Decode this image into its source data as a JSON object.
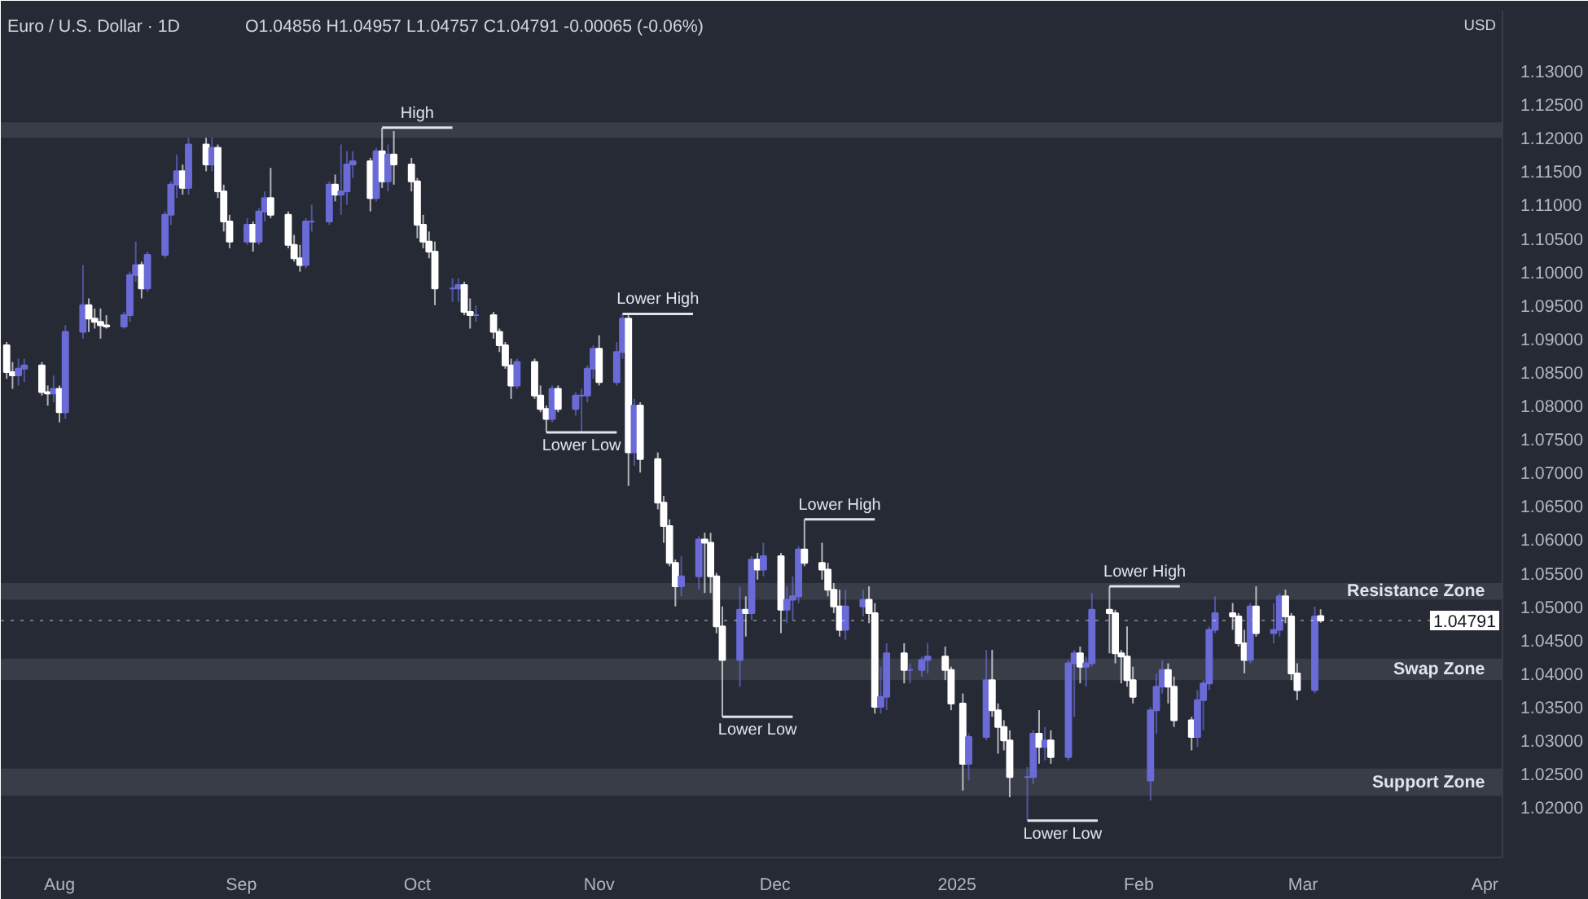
{
  "chart_data": {
    "type": "candlestick",
    "title": "Euro / U.S. Dollar · 1D",
    "subtitle": "O1.04856 H1.04957 L1.04757 C1.04791 -0.00065 (-0.06%)",
    "x": [
      "2024-07-23",
      "2024-07-24",
      "2024-07-25",
      "2024-07-26",
      "2024-07-29",
      "2024-07-30",
      "2024-07-31",
      "2024-08-01",
      "2024-08-02",
      "2024-08-05",
      "2024-08-06",
      "2024-08-07",
      "2024-08-08",
      "2024-08-09",
      "2024-08-12",
      "2024-08-13",
      "2024-08-14",
      "2024-08-15",
      "2024-08-16",
      "2024-08-19",
      "2024-08-20",
      "2024-08-21",
      "2024-08-22",
      "2024-08-23",
      "2024-08-26",
      "2024-08-27",
      "2024-08-28",
      "2024-08-29",
      "2024-08-30",
      "2024-09-02",
      "2024-09-03",
      "2024-09-04",
      "2024-09-05",
      "2024-09-06",
      "2024-09-09",
      "2024-09-10",
      "2024-09-11",
      "2024-09-12",
      "2024-09-13",
      "2024-09-16",
      "2024-09-17",
      "2024-09-18",
      "2024-09-19",
      "2024-09-20",
      "2024-09-23",
      "2024-09-24",
      "2024-09-25",
      "2024-09-26",
      "2024-09-27",
      "2024-09-30",
      "2024-10-01",
      "2024-10-02",
      "2024-10-03",
      "2024-10-04",
      "2024-10-07",
      "2024-10-08",
      "2024-10-09",
      "2024-10-10",
      "2024-10-11",
      "2024-10-14",
      "2024-10-15",
      "2024-10-16",
      "2024-10-17",
      "2024-10-18",
      "2024-10-21",
      "2024-10-22",
      "2024-10-23",
      "2024-10-24",
      "2024-10-25",
      "2024-10-28",
      "2024-10-29",
      "2024-10-30",
      "2024-10-31",
      "2024-11-01",
      "2024-11-04",
      "2024-11-05",
      "2024-11-06",
      "2024-11-07",
      "2024-11-08",
      "2024-11-11",
      "2024-11-12",
      "2024-11-13",
      "2024-11-14",
      "2024-11-15",
      "2024-11-18",
      "2024-11-19",
      "2024-11-20",
      "2024-11-21",
      "2024-11-22",
      "2024-11-25",
      "2024-11-26",
      "2024-11-27",
      "2024-11-28",
      "2024-11-29",
      "2024-12-02",
      "2024-12-03",
      "2024-12-04",
      "2024-12-05",
      "2024-12-06",
      "2024-12-09",
      "2024-12-10",
      "2024-12-11",
      "2024-12-12",
      "2024-12-13",
      "2024-12-16",
      "2024-12-17",
      "2024-12-18",
      "2024-12-19",
      "2024-12-20",
      "2024-12-23",
      "2024-12-24",
      "2024-12-26",
      "2024-12-27",
      "2024-12-30",
      "2024-12-31",
      "2025-01-02",
      "2025-01-03",
      "2025-01-06",
      "2025-01-07",
      "2025-01-08",
      "2025-01-09",
      "2025-01-10",
      "2025-01-13",
      "2025-01-14",
      "2025-01-15",
      "2025-01-16",
      "2025-01-17",
      "2025-01-20",
      "2025-01-21",
      "2025-01-22",
      "2025-01-23",
      "2025-01-24",
      "2025-01-27",
      "2025-01-28",
      "2025-01-29",
      "2025-01-30",
      "2025-01-31",
      "2025-02-03",
      "2025-02-04",
      "2025-02-05",
      "2025-02-06",
      "2025-02-07",
      "2025-02-10",
      "2025-02-11",
      "2025-02-12",
      "2025-02-13",
      "2025-02-14",
      "2025-02-17",
      "2025-02-18",
      "2025-02-19",
      "2025-02-20",
      "2025-02-21",
      "2025-02-24",
      "2025-02-25",
      "2025-02-26",
      "2025-02-27",
      "2025-02-28",
      "2025-03-03",
      "2025-03-04"
    ],
    "ohlc": [
      [
        1.089,
        1.0895,
        1.084,
        1.085
      ],
      [
        1.085,
        1.0865,
        1.0825,
        1.0845
      ],
      [
        1.0845,
        1.087,
        1.083,
        1.0855
      ],
      [
        1.0855,
        1.087,
        1.0835,
        1.086
      ],
      [
        1.086,
        1.0865,
        1.0815,
        1.082
      ],
      [
        1.082,
        1.083,
        1.08,
        1.0818
      ],
      [
        1.0818,
        1.0845,
        1.0805,
        1.0825
      ],
      [
        1.0825,
        1.083,
        1.0775,
        1.079
      ],
      [
        1.079,
        1.092,
        1.078,
        1.091
      ],
      [
        1.091,
        1.101,
        1.09,
        1.095
      ],
      [
        1.095,
        1.096,
        1.091,
        1.093
      ],
      [
        1.093,
        1.0945,
        1.0915,
        1.0925
      ],
      [
        1.0925,
        1.0945,
        1.09,
        1.092
      ],
      [
        1.092,
        1.0935,
        1.0915,
        1.0918
      ],
      [
        1.0918,
        1.094,
        1.0915,
        1.0935
      ],
      [
        1.0935,
        1.1,
        1.0925,
        1.0995
      ],
      [
        1.0995,
        1.1045,
        1.0985,
        1.101
      ],
      [
        1.101,
        1.1015,
        1.096,
        1.0975
      ],
      [
        1.0975,
        1.103,
        1.097,
        1.1025
      ],
      [
        1.1025,
        1.109,
        1.102,
        1.1085
      ],
      [
        1.1085,
        1.1135,
        1.107,
        1.113
      ],
      [
        1.113,
        1.1175,
        1.111,
        1.115
      ],
      [
        1.115,
        1.116,
        1.1115,
        1.1125
      ],
      [
        1.1125,
        1.12,
        1.1115,
        1.119
      ],
      [
        1.119,
        1.12,
        1.115,
        1.116
      ],
      [
        1.116,
        1.12,
        1.115,
        1.1185
      ],
      [
        1.1185,
        1.119,
        1.111,
        1.112
      ],
      [
        1.112,
        1.113,
        1.106,
        1.1075
      ],
      [
        1.1075,
        1.1085,
        1.1035,
        1.1045
      ],
      [
        1.1045,
        1.108,
        1.104,
        1.107
      ],
      [
        1.107,
        1.1075,
        1.103,
        1.1045
      ],
      [
        1.1045,
        1.1095,
        1.104,
        1.109
      ],
      [
        1.109,
        1.112,
        1.1075,
        1.111
      ],
      [
        1.111,
        1.1155,
        1.108,
        1.1085
      ],
      [
        1.1085,
        1.109,
        1.1035,
        1.104
      ],
      [
        1.104,
        1.1055,
        1.1015,
        1.102
      ],
      [
        1.102,
        1.104,
        1.1,
        1.101
      ],
      [
        1.101,
        1.108,
        1.1005,
        1.1075
      ],
      [
        1.1075,
        1.11,
        1.106,
        1.1075
      ],
      [
        1.1075,
        1.1135,
        1.107,
        1.113
      ],
      [
        1.113,
        1.1145,
        1.1105,
        1.1115
      ],
      [
        1.1115,
        1.119,
        1.1085,
        1.112
      ],
      [
        1.112,
        1.118,
        1.11,
        1.116
      ],
      [
        1.116,
        1.118,
        1.114,
        1.1165
      ],
      [
        1.1165,
        1.117,
        1.109,
        1.111
      ],
      [
        1.111,
        1.1185,
        1.1105,
        1.118
      ],
      [
        1.118,
        1.1215,
        1.1125,
        1.1135
      ],
      [
        1.1135,
        1.119,
        1.112,
        1.1175
      ],
      [
        1.1175,
        1.121,
        1.113,
        1.116
      ],
      [
        1.116,
        1.117,
        1.112,
        1.1135
      ],
      [
        1.1135,
        1.114,
        1.105,
        1.107
      ],
      [
        1.107,
        1.1085,
        1.1035,
        1.1045
      ],
      [
        1.1045,
        1.106,
        1.102,
        1.103
      ],
      [
        1.103,
        1.1045,
        1.095,
        1.0975
      ],
      [
        1.0975,
        1.099,
        1.0955,
        1.0975
      ],
      [
        1.0975,
        1.099,
        1.0955,
        1.098
      ],
      [
        1.098,
        1.0985,
        1.0935,
        1.094
      ],
      [
        1.094,
        1.096,
        1.0915,
        1.0935
      ],
      [
        1.0935,
        1.095,
        1.0925,
        1.0935
      ],
      [
        1.0935,
        1.094,
        1.09,
        1.091
      ],
      [
        1.091,
        1.0915,
        1.088,
        1.089
      ],
      [
        1.089,
        1.0895,
        1.0855,
        1.086
      ],
      [
        1.086,
        1.087,
        1.081,
        1.083
      ],
      [
        1.083,
        1.087,
        1.0825,
        1.0865
      ],
      [
        1.0865,
        1.087,
        1.081,
        1.0815
      ],
      [
        1.0815,
        1.083,
        1.079,
        1.0795
      ],
      [
        1.0795,
        1.08,
        1.076,
        1.078
      ],
      [
        1.078,
        1.083,
        1.0775,
        1.0825
      ],
      [
        1.0825,
        1.083,
        1.079,
        1.0795
      ],
      [
        1.0795,
        1.082,
        1.0785,
        1.0815
      ],
      [
        1.0815,
        1.0825,
        1.076,
        1.0815
      ],
      [
        1.0815,
        1.086,
        1.0805,
        1.0855
      ],
      [
        1.0855,
        1.089,
        1.084,
        1.0885
      ],
      [
        1.0885,
        1.0905,
        1.083,
        1.0835
      ],
      [
        1.0835,
        1.0895,
        1.083,
        1.088
      ],
      [
        1.088,
        1.0937,
        1.087,
        1.093
      ],
      [
        1.093,
        1.0935,
        1.068,
        1.073
      ],
      [
        1.073,
        1.081,
        1.071,
        1.08
      ],
      [
        1.08,
        1.0805,
        1.07,
        1.072
      ],
      [
        1.072,
        1.073,
        1.0645,
        1.0655
      ],
      [
        1.0655,
        1.0665,
        1.0595,
        1.062
      ],
      [
        1.062,
        1.063,
        1.056,
        1.0565
      ],
      [
        1.0565,
        1.057,
        1.05,
        1.053
      ],
      [
        1.053,
        1.0575,
        1.0515,
        1.0545
      ],
      [
        1.0545,
        1.0605,
        1.0525,
        1.06
      ],
      [
        1.06,
        1.061,
        1.052,
        1.0595
      ],
      [
        1.0595,
        1.061,
        1.052,
        1.0545
      ],
      [
        1.0545,
        1.055,
        1.046,
        1.047
      ],
      [
        1.047,
        1.05,
        1.0335,
        1.042
      ],
      [
        1.042,
        1.053,
        1.038,
        1.0495
      ],
      [
        1.0495,
        1.0515,
        1.0455,
        1.049
      ],
      [
        1.049,
        1.0575,
        1.048,
        1.057
      ],
      [
        1.057,
        1.058,
        1.054,
        1.0555
      ],
      [
        1.0555,
        1.0595,
        1.0545,
        1.0575
      ],
      [
        1.0575,
        1.058,
        1.046,
        1.0495
      ],
      [
        1.0495,
        1.053,
        1.0475,
        1.051
      ],
      [
        1.051,
        1.0545,
        1.048,
        1.0515
      ],
      [
        1.0515,
        1.059,
        1.0505,
        1.0585
      ],
      [
        1.0585,
        1.063,
        1.056,
        1.0565
      ],
      [
        1.0565,
        1.0595,
        1.054,
        1.0555
      ],
      [
        1.0555,
        1.0565,
        1.0515,
        1.0525
      ],
      [
        1.0525,
        1.0535,
        1.049,
        1.05
      ],
      [
        1.05,
        1.0525,
        1.0455,
        1.0465
      ],
      [
        1.0465,
        1.0525,
        1.045,
        1.05
      ],
      [
        1.05,
        1.0525,
        1.0485,
        1.051
      ],
      [
        1.051,
        1.053,
        1.0475,
        1.049
      ],
      [
        1.049,
        1.0505,
        1.034,
        1.035
      ],
      [
        1.035,
        1.041,
        1.034,
        1.0365
      ],
      [
        1.0365,
        1.0445,
        1.0345,
        1.043
      ],
      [
        1.043,
        1.0445,
        1.0385,
        1.0405
      ],
      [
        1.0405,
        1.0415,
        1.0385,
        1.0405
      ],
      [
        1.0405,
        1.0425,
        1.0395,
        1.042
      ],
      [
        1.042,
        1.0445,
        1.04,
        1.0425
      ],
      [
        1.0425,
        1.044,
        1.039,
        1.0405
      ],
      [
        1.0405,
        1.041,
        1.0345,
        1.0355
      ],
      [
        1.0355,
        1.037,
        1.0225,
        1.0265
      ],
      [
        1.0265,
        1.031,
        1.024,
        1.0305
      ],
      [
        1.0305,
        1.0435,
        1.03,
        1.039
      ],
      [
        1.039,
        1.0435,
        1.0335,
        1.0345
      ],
      [
        1.0345,
        1.0355,
        1.028,
        1.032
      ],
      [
        1.032,
        1.033,
        1.0285,
        1.03
      ],
      [
        1.03,
        1.0315,
        1.0215,
        1.0245
      ],
      [
        1.0245,
        1.026,
        1.018,
        1.0245
      ],
      [
        1.0245,
        1.0315,
        1.0235,
        1.031
      ],
      [
        1.031,
        1.0345,
        1.0265,
        1.029
      ],
      [
        1.029,
        1.032,
        1.027,
        1.03
      ],
      [
        1.03,
        1.0315,
        1.0265,
        1.0275
      ],
      [
        1.0275,
        1.042,
        1.027,
        1.0415
      ],
      [
        1.0415,
        1.0435,
        1.0335,
        1.043
      ],
      [
        1.043,
        1.044,
        1.0385,
        1.041
      ],
      [
        1.041,
        1.0425,
        1.038,
        1.0415
      ],
      [
        1.0415,
        1.052,
        1.041,
        1.0495
      ],
      [
        1.0495,
        1.053,
        1.043,
        1.049
      ],
      [
        1.049,
        1.0495,
        1.0415,
        1.043
      ],
      [
        1.043,
        1.0435,
        1.0385,
        1.0425
      ],
      [
        1.0425,
        1.047,
        1.038,
        1.039
      ],
      [
        1.039,
        1.041,
        1.0355,
        1.0365
      ],
      [
        1.024,
        1.035,
        1.021,
        1.0345
      ],
      [
        1.0345,
        1.04,
        1.031,
        1.038
      ],
      [
        1.038,
        1.042,
        1.037,
        1.0405
      ],
      [
        1.0405,
        1.0415,
        1.0355,
        1.038
      ],
      [
        1.038,
        1.0395,
        1.032,
        1.033
      ],
      [
        1.033,
        1.0335,
        1.0285,
        1.0305
      ],
      [
        1.0305,
        1.0375,
        1.029,
        1.036
      ],
      [
        1.036,
        1.039,
        1.0315,
        1.0385
      ],
      [
        1.0385,
        1.047,
        1.0375,
        1.0465
      ],
      [
        1.0465,
        1.0515,
        1.046,
        1.049
      ],
      [
        1.049,
        1.0505,
        1.0465,
        1.0485
      ],
      [
        1.0485,
        1.049,
        1.044,
        1.0445
      ],
      [
        1.0445,
        1.0465,
        1.04,
        1.042
      ],
      [
        1.042,
        1.0505,
        1.0415,
        1.05
      ],
      [
        1.05,
        1.053,
        1.0455,
        1.046
      ],
      [
        1.046,
        1.0505,
        1.0445,
        1.0465
      ],
      [
        1.0465,
        1.052,
        1.0455,
        1.0515
      ],
      [
        1.0515,
        1.0525,
        1.0475,
        1.0485
      ],
      [
        1.0485,
        1.049,
        1.039,
        1.04
      ],
      [
        1.04,
        1.0415,
        1.036,
        1.0375
      ],
      [
        1.0375,
        1.05,
        1.037,
        1.0485
      ],
      [
        1.04856,
        1.04957,
        1.04757,
        1.04791
      ]
    ],
    "xlim": [
      "2024-07-22",
      "2025-04-04"
    ],
    "xticks": [
      {
        "value": "2024-08-01",
        "label": "Aug"
      },
      {
        "value": "2024-09-01",
        "label": "Sep"
      },
      {
        "value": "2024-10-01",
        "label": "Oct"
      },
      {
        "value": "2024-11-01",
        "label": "Nov"
      },
      {
        "value": "2024-12-01",
        "label": "Dec"
      },
      {
        "value": "2025-01-01",
        "label": "2025"
      },
      {
        "value": "2025-02-01",
        "label": "Feb"
      },
      {
        "value": "2025-03-01",
        "label": "Mar"
      },
      {
        "value": "2025-04-01",
        "label": "Apr"
      }
    ],
    "ylim": [
      1.0125,
      1.139
    ],
    "yticks": [
      {
        "value": 1.02,
        "label": "1.02000"
      },
      {
        "value": 1.025,
        "label": "1.02500"
      },
      {
        "value": 1.03,
        "label": "1.03000"
      },
      {
        "value": 1.035,
        "label": "1.03500"
      },
      {
        "value": 1.04,
        "label": "1.04000"
      },
      {
        "value": 1.045,
        "label": "1.04500"
      },
      {
        "value": 1.05,
        "label": "1.05000"
      },
      {
        "value": 1.055,
        "label": "1.05500"
      },
      {
        "value": 1.06,
        "label": "1.06000"
      },
      {
        "value": 1.065,
        "label": "1.06500"
      },
      {
        "value": 1.07,
        "label": "1.07000"
      },
      {
        "value": 1.075,
        "label": "1.07500"
      },
      {
        "value": 1.08,
        "label": "1.08000"
      },
      {
        "value": 1.085,
        "label": "1.08500"
      },
      {
        "value": 1.09,
        "label": "1.09000"
      },
      {
        "value": 1.095,
        "label": "1.09500"
      },
      {
        "value": 1.1,
        "label": "1.10000"
      },
      {
        "value": 1.105,
        "label": "1.10500"
      },
      {
        "value": 1.11,
        "label": "1.11000"
      },
      {
        "value": 1.115,
        "label": "1.11500"
      },
      {
        "value": 1.12,
        "label": "1.12000"
      },
      {
        "value": 1.125,
        "label": "1.12500"
      },
      {
        "value": 1.13,
        "label": "1.13000"
      }
    ],
    "bands": [
      {
        "axis": "y",
        "from": 1.12,
        "to": 1.1223,
        "label": null,
        "color": "#3d414c"
      },
      {
        "axis": "y",
        "from": 1.051,
        "to": 1.0535,
        "label": "Resistance Zone",
        "color": "#3d414c"
      },
      {
        "axis": "y",
        "from": 1.039,
        "to": 1.0422,
        "label": "Swap Zone",
        "color": "#3d414c"
      },
      {
        "axis": "y",
        "from": 1.0217,
        "to": 1.0258,
        "label": "Support Zone",
        "color": "#3d414c"
      }
    ],
    "ref_lines": [
      {
        "axis": "y",
        "value": 1.04791,
        "label": "1.04791",
        "color": "#ffffff",
        "line_style": "dotted"
      }
    ],
    "annotations": [
      {
        "text": "High",
        "x": "2024-09-25",
        "y": 1.1215
      },
      {
        "text": "Lower Low",
        "x": "2024-10-23",
        "y": 1.076
      },
      {
        "text": "Lower High",
        "x": "2024-11-05",
        "y": 1.0937
      },
      {
        "text": "Lower Low",
        "x": "2024-11-22",
        "y": 1.0335
      },
      {
        "text": "Lower High",
        "x": "2024-12-06",
        "y": 1.063
      },
      {
        "text": "Lower Low",
        "x": "2025-01-13",
        "y": 1.018
      },
      {
        "text": "Lower High",
        "x": "2025-01-27",
        "y": 1.053
      },
      "USD"
    ]
  }
}
